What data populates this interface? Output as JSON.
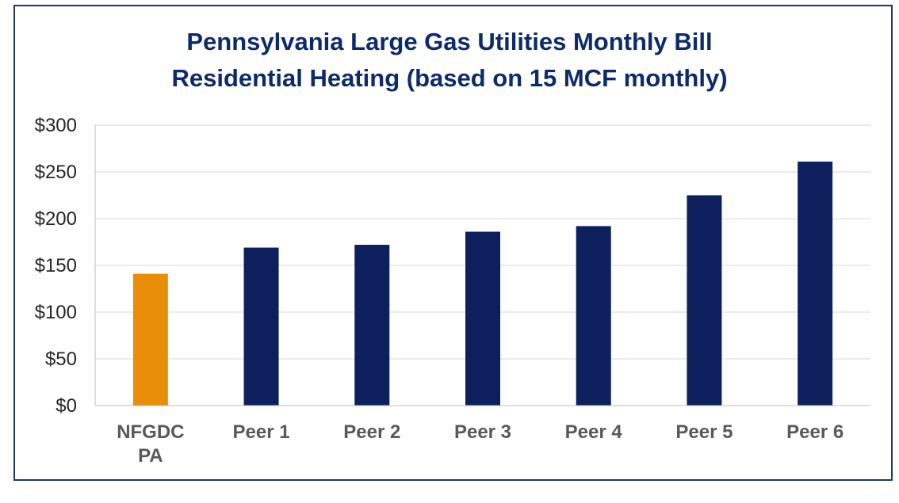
{
  "chart_data": {
    "type": "bar",
    "title_lines": [
      "Pennsylvania Large Gas Utilities Monthly Bill",
      "Residential Heating (based on 15 MCF monthly)"
    ],
    "categories": [
      [
        "NFGDC",
        "PA"
      ],
      [
        "Peer 1"
      ],
      [
        "Peer 2"
      ],
      [
        "Peer 3"
      ],
      [
        "Peer 4"
      ],
      [
        "Peer 5"
      ],
      [
        "Peer 6"
      ]
    ],
    "values": [
      141,
      169,
      172,
      186,
      192,
      225,
      261
    ],
    "bar_colors": [
      "#e98e08",
      "#0d1f5c",
      "#0d1f5c",
      "#0d1f5c",
      "#0d1f5c",
      "#0d1f5c",
      "#0d1f5c"
    ],
    "ylim": [
      0,
      300
    ],
    "yticks": [
      0,
      50,
      100,
      150,
      200,
      250,
      300
    ],
    "ytick_labels": [
      "$0",
      "$50",
      "$100",
      "$150",
      "$200",
      "$250",
      "$300"
    ],
    "grid": true,
    "legend": "none"
  }
}
